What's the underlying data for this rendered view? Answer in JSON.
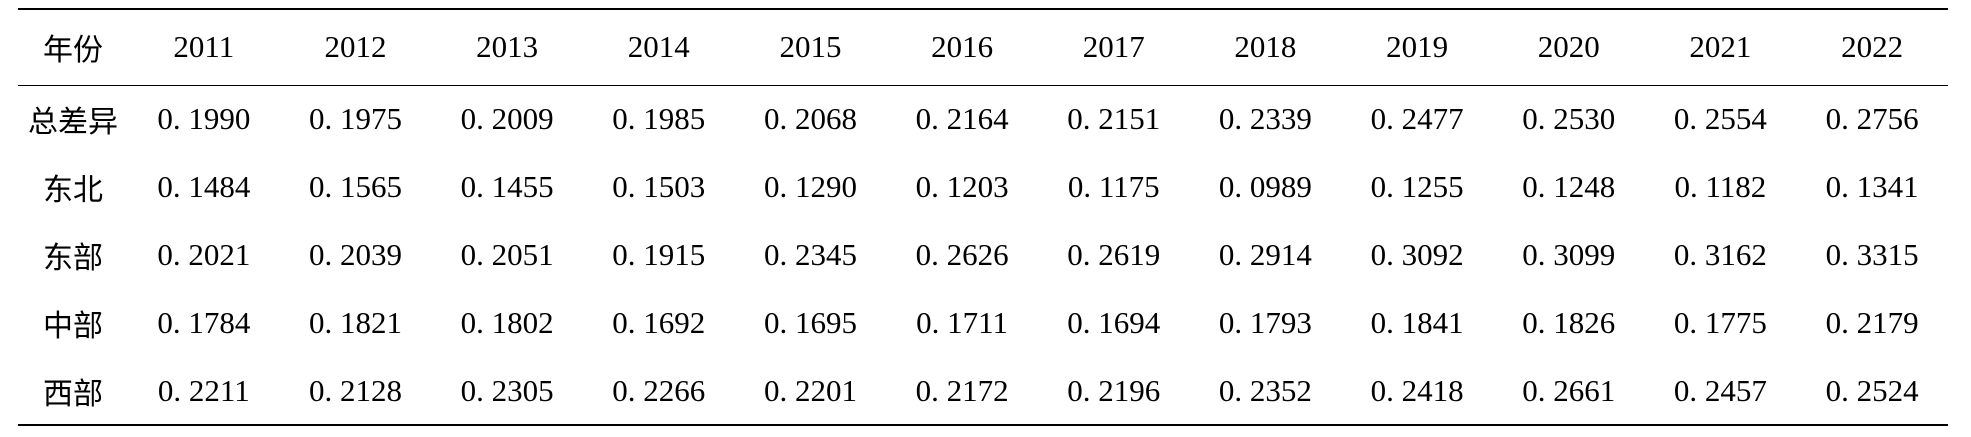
{
  "table": {
    "header_label": "年份",
    "years": [
      "2011",
      "2012",
      "2013",
      "2014",
      "2015",
      "2016",
      "2017",
      "2018",
      "2019",
      "2020",
      "2021",
      "2022"
    ],
    "rows": [
      {
        "label": "总差异",
        "values": [
          "0. 1990",
          "0. 1975",
          "0. 2009",
          "0. 1985",
          "0. 2068",
          "0. 2164",
          "0. 2151",
          "0. 2339",
          "0. 2477",
          "0. 2530",
          "0. 2554",
          "0. 2756"
        ]
      },
      {
        "label": "东北",
        "values": [
          "0. 1484",
          "0. 1565",
          "0. 1455",
          "0. 1503",
          "0. 1290",
          "0. 1203",
          "0. 1175",
          "0. 0989",
          "0. 1255",
          "0. 1248",
          "0. 1182",
          "0. 1341"
        ]
      },
      {
        "label": "东部",
        "values": [
          "0. 2021",
          "0. 2039",
          "0. 2051",
          "0. 1915",
          "0. 2345",
          "0. 2626",
          "0. 2619",
          "0. 2914",
          "0. 3092",
          "0. 3099",
          "0. 3162",
          "0. 3315"
        ]
      },
      {
        "label": "中部",
        "values": [
          "0. 1784",
          "0. 1821",
          "0. 1802",
          "0. 1692",
          "0. 1695",
          "0. 1711",
          "0. 1694",
          "0. 1793",
          "0. 1841",
          "0. 1826",
          "0. 1775",
          "0. 2179"
        ]
      },
      {
        "label": "西部",
        "values": [
          "0. 2211",
          "0. 2128",
          "0. 2305",
          "0. 2266",
          "0. 2201",
          "0. 2172",
          "0. 2196",
          "0. 2352",
          "0. 2418",
          "0. 2661",
          "0. 2457",
          "0. 2524"
        ]
      }
    ]
  }
}
